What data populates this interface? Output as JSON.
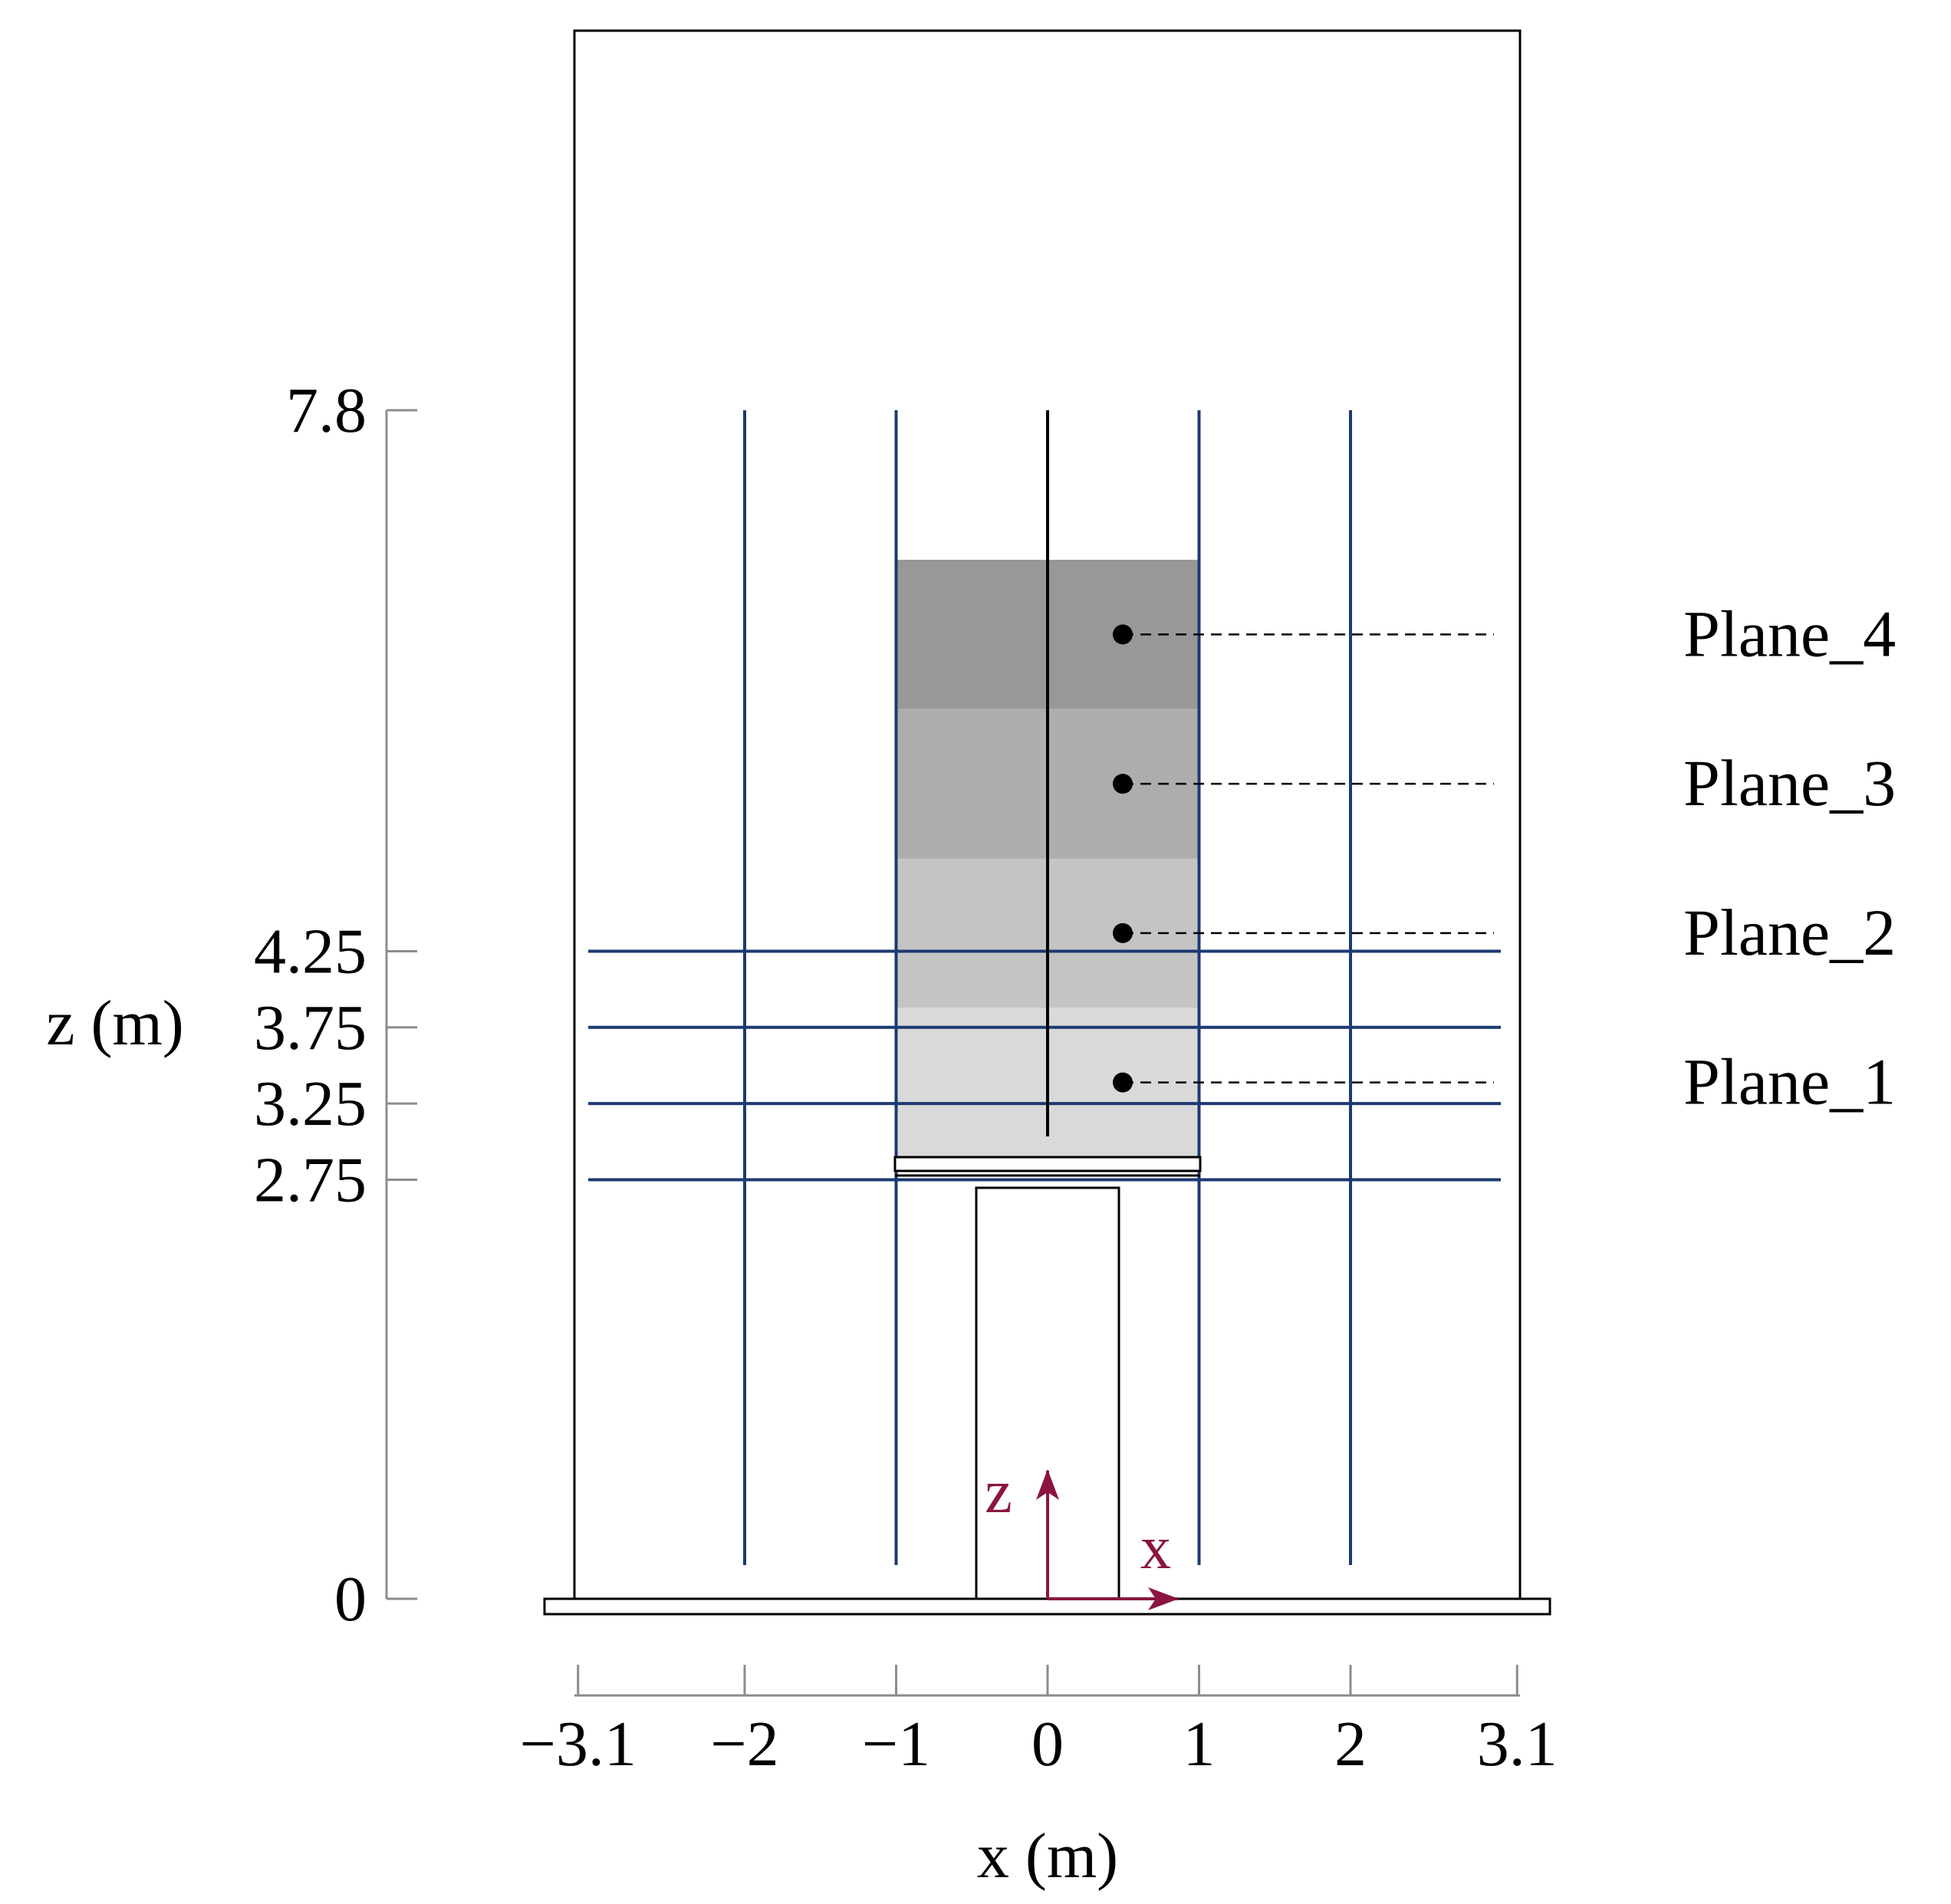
{
  "colors": {
    "grid_lines": "#1c3a72",
    "coordinate_arrows": "#8b1540",
    "outline": "#000000",
    "axis_lines": "#8c8c8c",
    "plane_shades": [
      "#d9d9d9",
      "#c4c4c4",
      "#adadad",
      "#989898"
    ]
  },
  "axes": {
    "x_title": "x (m)",
    "z_title": "z (m)",
    "x_ticks": [
      {
        "value": -3.1,
        "label": "−3.1"
      },
      {
        "value": -2,
        "label": "−2"
      },
      {
        "value": -1,
        "label": "−1"
      },
      {
        "value": 0,
        "label": "0"
      },
      {
        "value": 1,
        "label": "1"
      },
      {
        "value": 2,
        "label": "2"
      },
      {
        "value": 3.1,
        "label": "3.1"
      }
    ],
    "z_ticks": [
      {
        "value": 0,
        "label": "0"
      },
      {
        "value": 2.75,
        "label": "2.75"
      },
      {
        "value": 3.25,
        "label": "3.25"
      },
      {
        "value": 3.75,
        "label": "3.75"
      },
      {
        "value": 4.25,
        "label": "4.25"
      },
      {
        "value": 7.8,
        "label": "7.8"
      }
    ]
  },
  "grid": {
    "vertical_x": [
      -2,
      -1,
      1,
      2
    ],
    "horizontal_z": [
      2.75,
      3.25,
      3.75,
      4.25
    ]
  },
  "planes": [
    {
      "label": "Plane_1"
    },
    {
      "label": "Plane_2"
    },
    {
      "label": "Plane_3"
    },
    {
      "label": "Plane_4"
    }
  ],
  "coordinate_system": {
    "x_label": "x",
    "z_label": "z"
  }
}
